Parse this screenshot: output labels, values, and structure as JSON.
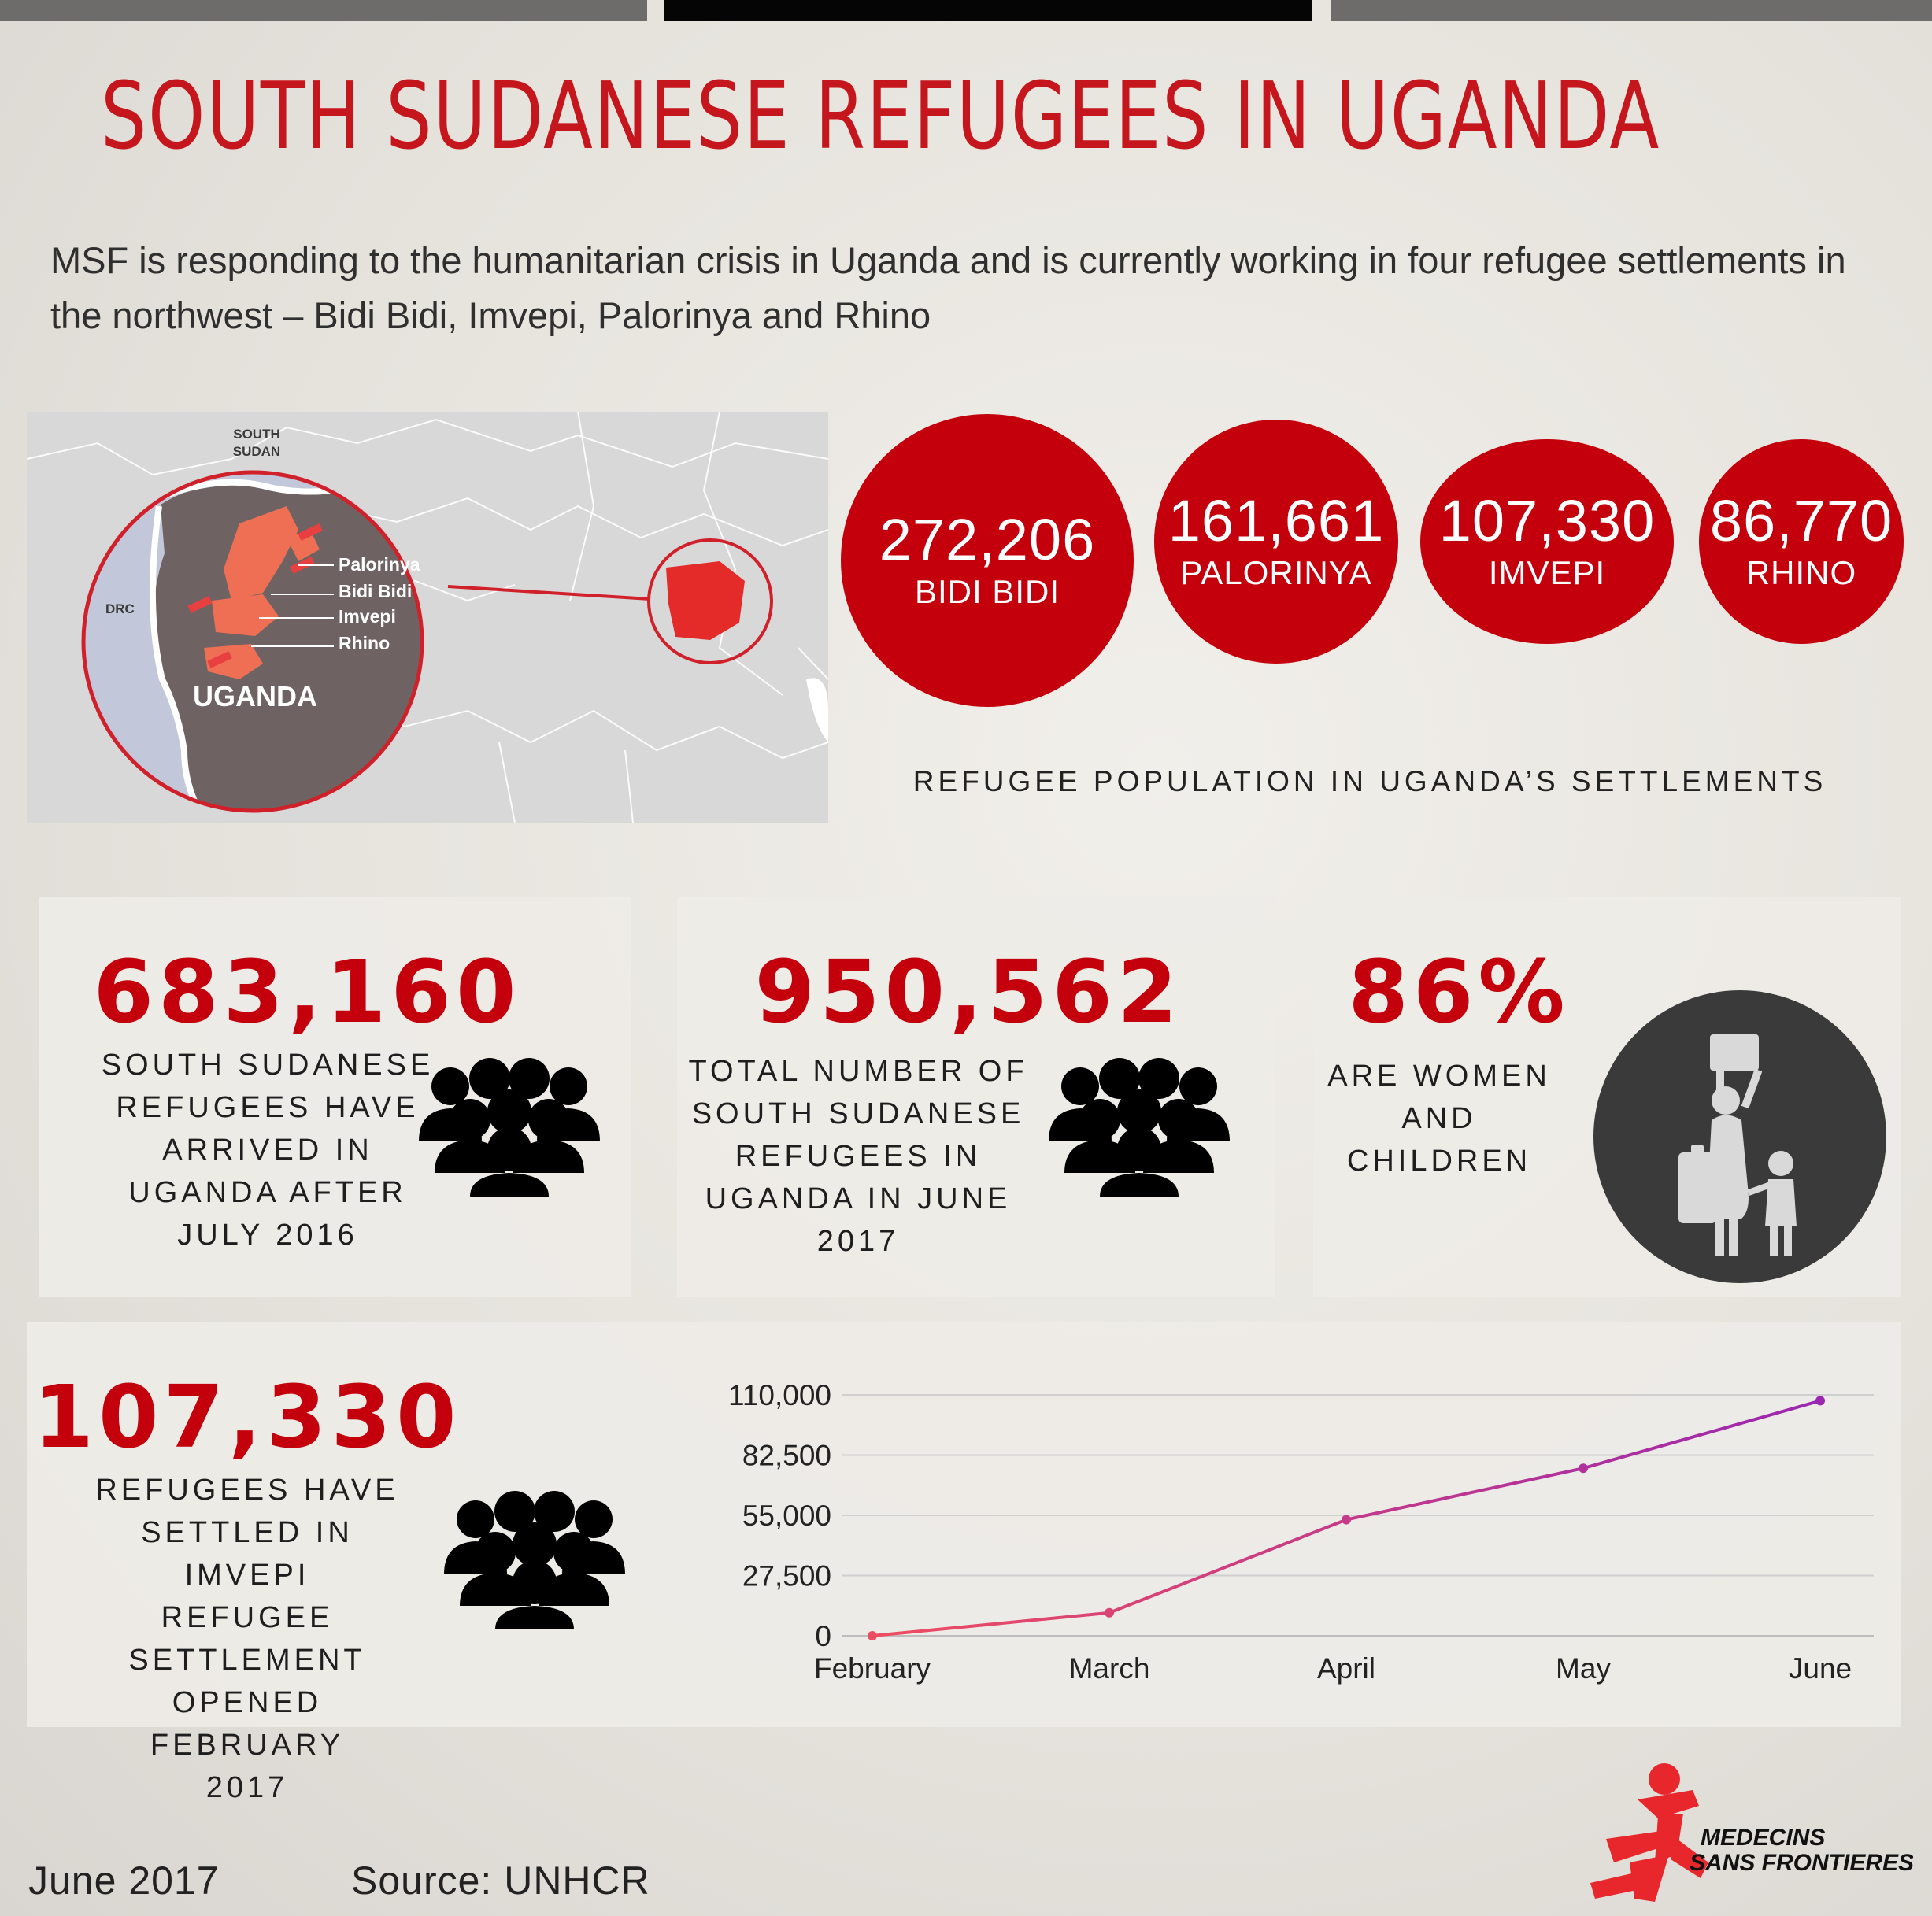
{
  "title": "SOUTH SUDANESE REFUGEES IN UGANDA",
  "intro": "MSF is responding to the humanitarian crisis in Uganda and is currently working in four refugee settlements in the northwest – Bidi Bidi, Imvepi, Palorinya and Rhino",
  "map": {
    "south_sudan_line1": "SOUTH",
    "south_sudan_line2": "SUDAN",
    "drc": "DRC",
    "uganda": "UGANDA",
    "settlements": [
      "Palorinya",
      "Bidi Bidi",
      "Imvepi",
      "Rhino"
    ]
  },
  "populations": [
    {
      "value": "272,206",
      "label": "BIDI BIDI"
    },
    {
      "value": "161,661",
      "label": "PALORINYA"
    },
    {
      "value": "107,330",
      "label": "IMVEPI"
    },
    {
      "value": "86,770",
      "label": "RHINO"
    }
  ],
  "population_caption": "REFUGEE POPULATION IN UGANDA’S SETTLEMENTS",
  "stats": [
    {
      "value": "683,160",
      "lines": [
        "SOUTH SUDANESE",
        "REFUGEES HAVE",
        "ARRIVED IN",
        "UGANDA AFTER",
        "JULY 2016"
      ],
      "icon": "people-group-icon"
    },
    {
      "value": "950,562",
      "lines": [
        "TOTAL NUMBER OF",
        "SOUTH SUDANESE",
        "REFUGEES IN",
        "UGANDA IN JUNE",
        "2017"
      ],
      "icon": "people-group-icon"
    },
    {
      "value": "86%",
      "lines": [
        "ARE WOMEN",
        "AND",
        "CHILDREN"
      ],
      "icon": "woman-child-icon"
    }
  ],
  "imvepi": {
    "value": "107,330",
    "lines": [
      "REFUGEES HAVE",
      "SETTLED IN IMVEPI",
      "REFUGEE",
      "SETTLEMENT",
      "OPENED FEBRUARY",
      "2017"
    ],
    "icon": "people-group-icon"
  },
  "chart_data": {
    "type": "line",
    "categories": [
      "February",
      "March",
      "April",
      "May",
      "June"
    ],
    "values": [
      0,
      10500,
      53000,
      76500,
      107330
    ],
    "yticks": [
      "0",
      "27,500",
      "55,000",
      "82,500",
      "110,000"
    ],
    "ylim": [
      0,
      110000
    ],
    "grid": true,
    "colors": {
      "start": "#ee4d61",
      "end": "#9b27b0"
    }
  },
  "footer": {
    "date": "June 2017",
    "source": "Source: UNHCR",
    "logo_line1": "MEDECINS",
    "logo_line2": "SANS FRONTIERES"
  },
  "colors": {
    "accent": "#c4000c",
    "title": "#c4161c"
  }
}
